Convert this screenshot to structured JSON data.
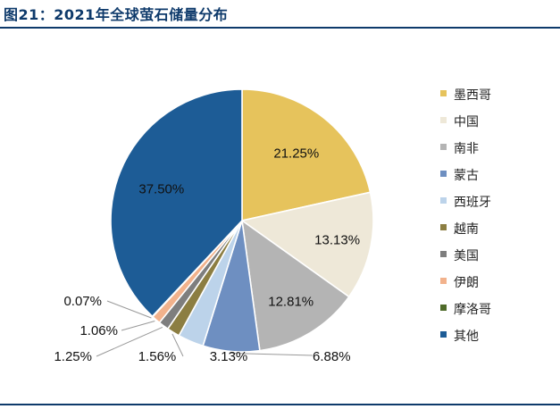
{
  "figure": {
    "title": "图21：2021年全球萤石储量分布"
  },
  "chart_data": {
    "type": "pie",
    "title": "2021年全球萤石储量分布",
    "slices": [
      {
        "label": "墨西哥",
        "value": 21.25,
        "display": "21.25%",
        "color": "#E6C35C"
      },
      {
        "label": "中国",
        "value": 13.13,
        "display": "13.13%",
        "color": "#EEE8D8"
      },
      {
        "label": "南非",
        "value": 12.81,
        "display": "12.81%",
        "color": "#B4B4B4"
      },
      {
        "label": "蒙古",
        "value": 6.88,
        "display": "6.88%",
        "color": "#6E8FC1"
      },
      {
        "label": "西班牙",
        "value": 3.13,
        "display": "3.13%",
        "color": "#BCD3EA"
      },
      {
        "label": "越南",
        "value": 1.56,
        "display": "1.56%",
        "color": "#8C7E42"
      },
      {
        "label": "美国",
        "value": 1.25,
        "display": "1.25%",
        "color": "#7E7E7E"
      },
      {
        "label": "伊朗",
        "value": 1.06,
        "display": "1.06%",
        "color": "#F2B28C"
      },
      {
        "label": "摩洛哥",
        "value": 0.07,
        "display": "0.07%",
        "color": "#4F6B2A"
      },
      {
        "label": "其他",
        "value": 37.5,
        "display": "37.50%",
        "color": "#1D5C96"
      }
    ],
    "legend_position": "right"
  }
}
